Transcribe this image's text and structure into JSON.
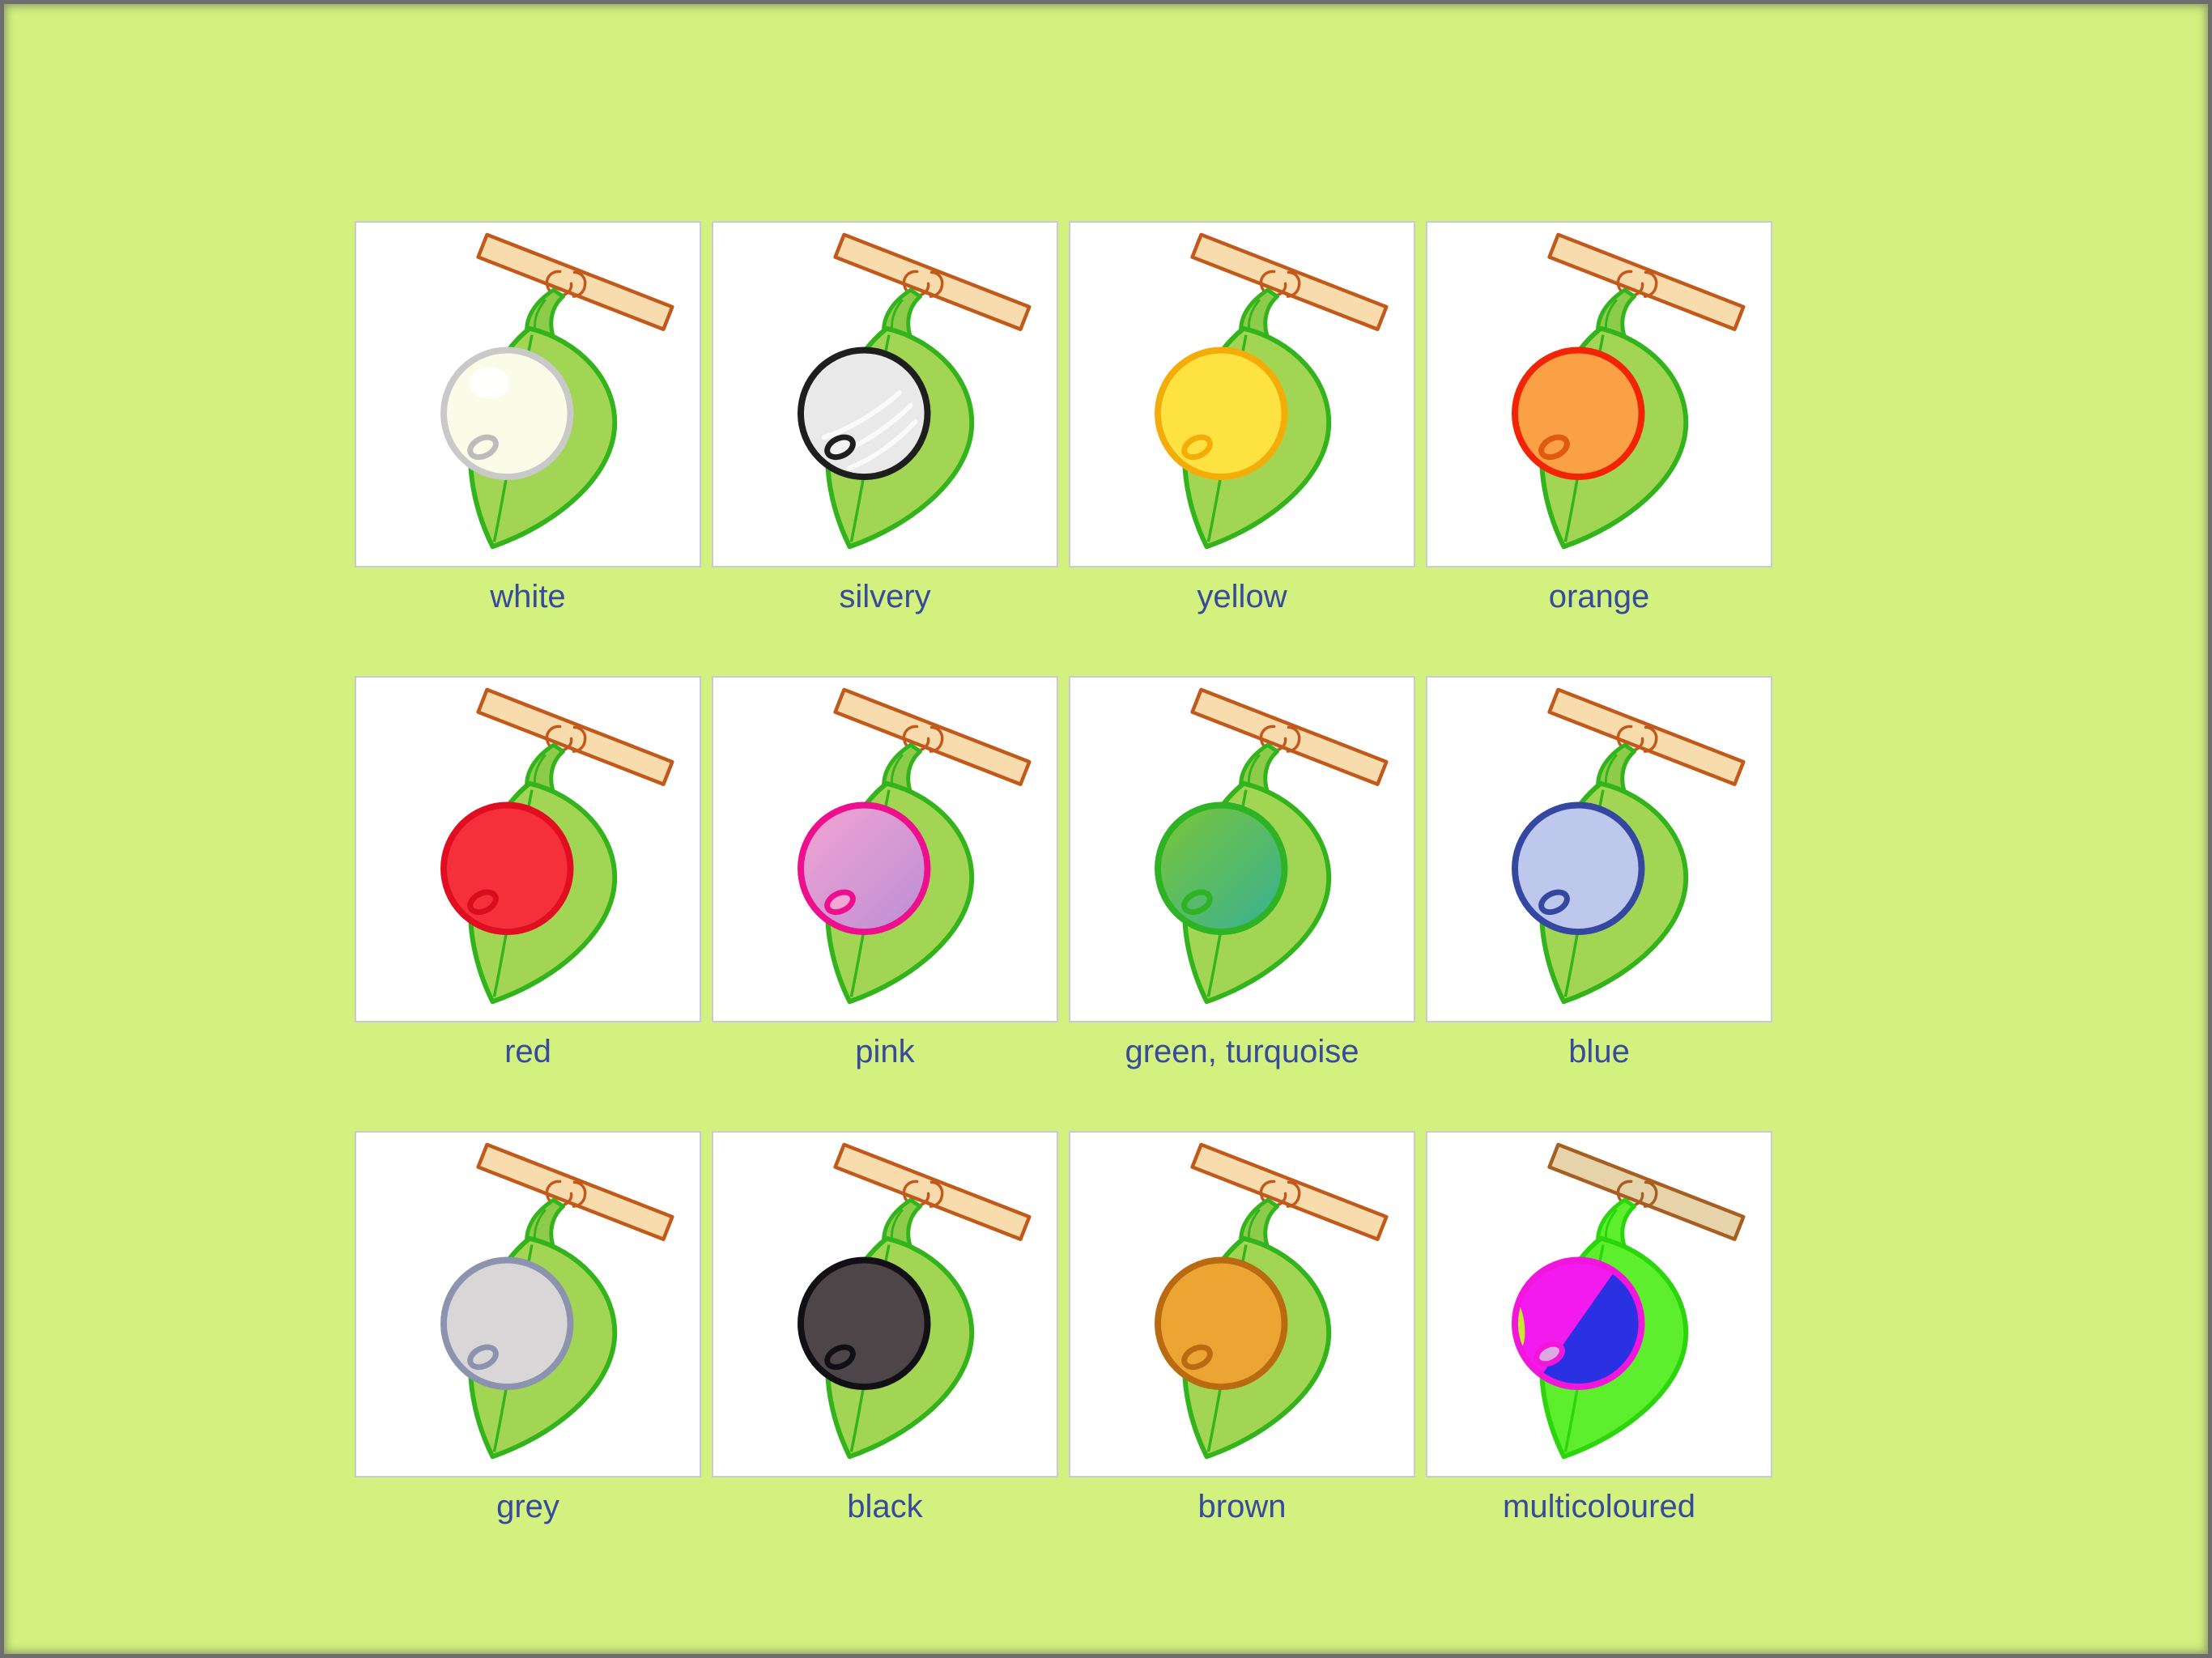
{
  "page": {
    "background_color": "#d2f17e",
    "frame_color": "#6e6e6e",
    "label_color": "#374a9c"
  },
  "artwork": {
    "branch": {
      "fill": "#f8dcae",
      "stroke": "#c2591b"
    },
    "stem_fill": "#8ccc4a",
    "leaf": {
      "fill": "#a2d553",
      "stroke": "#33b31c"
    }
  },
  "cards": [
    {
      "label": "white",
      "berry": {
        "fill": "#fbfce8",
        "stroke": "#c9c9c9",
        "spot_fill": "#fbfce8",
        "spot_stroke": "#bcbcbc",
        "effect": "highlight"
      }
    },
    {
      "label": "silvery",
      "berry": {
        "fill": "#e9e9e9",
        "stroke": "#1e1e1e",
        "spot_fill": "#f2f2f2",
        "spot_stroke": "#1e1e1e",
        "effect": "streaks"
      }
    },
    {
      "label": "yellow",
      "berry": {
        "fill": "#fee242",
        "stroke": "#f4ad08",
        "spot_fill": "#fee242",
        "spot_stroke": "#f4ad08",
        "effect": "none"
      }
    },
    {
      "label": "orange",
      "berry": {
        "fill": "#f9a144",
        "stroke": "#f22405",
        "spot_fill": "#f9a144",
        "spot_stroke": "#e05a10",
        "effect": "none"
      }
    },
    {
      "label": "red",
      "berry": {
        "fill": "#f5303a",
        "stroke": "#e00e20",
        "spot_fill": "#f5303a",
        "spot_stroke": "#d80d1e",
        "effect": "none"
      }
    },
    {
      "label": "pink",
      "berry": {
        "gradient": [
          "#f4a4d2",
          "#ba8fd6"
        ],
        "stroke": "#ee0f8e",
        "spot_fill": "#f2a8d2",
        "spot_stroke": "#ee0f8e",
        "effect": "none"
      }
    },
    {
      "label": "green, turquoise",
      "berry": {
        "gradient": [
          "#7cc636",
          "#36b097"
        ],
        "stroke": "#2db324",
        "spot_fill": "none",
        "spot_stroke": "#2db324",
        "effect": "none"
      }
    },
    {
      "label": "blue",
      "berry": {
        "fill": "#bdc8ec",
        "stroke": "#3448a2",
        "spot_fill": "#bdc8ec",
        "spot_stroke": "#3448a2",
        "effect": "none"
      }
    },
    {
      "label": "grey",
      "berry": {
        "fill": "#d9d6d8",
        "stroke": "#8b93af",
        "spot_fill": "#d9d6d8",
        "spot_stroke": "#8b93af",
        "effect": "none"
      }
    },
    {
      "label": "black",
      "berry": {
        "fill": "#4e4549",
        "stroke": "#131015",
        "spot_fill": "#4e4549",
        "spot_stroke": "#131015",
        "effect": "none"
      }
    },
    {
      "label": "brown",
      "berry": {
        "fill": "#eca532",
        "stroke": "#ba6b11",
        "spot_fill": "#eca532",
        "spot_stroke": "#ba6b11",
        "effect": "none"
      }
    },
    {
      "label": "multicoloured",
      "berry": {
        "fill": "#f31af0",
        "stroke": "#f216dc",
        "spot_fill": "#dcaade",
        "spot_stroke": "#f216dc",
        "effect": "split",
        "split": {
          "second_color": "#2a31e3",
          "sliver_color": "#c9e92b"
        }
      },
      "overrides": {
        "branch": {
          "fill": "#e7d3a9",
          "stroke": "#a65e22"
        },
        "stem_fill": "#5dee2d",
        "leaf": {
          "fill": "#5dee2d",
          "stroke": "#2bd60d"
        }
      }
    }
  ]
}
